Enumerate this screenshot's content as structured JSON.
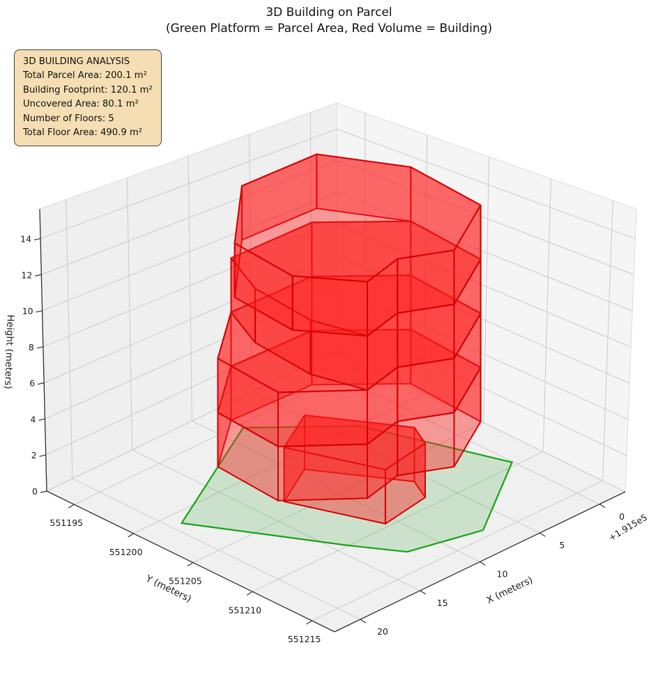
{
  "title": {
    "line1": "3D Building on Parcel",
    "line2": "(Green Platform = Parcel Area, Red Volume = Building)"
  },
  "annotation": {
    "title": "3D BUILDING ANALYSIS",
    "lines": [
      "Total Parcel Area: 200.1 m²",
      "Building Footprint: 120.1 m²",
      "Uncovered Area: 80.1 m²",
      "Number of Floors: 5",
      "Total Floor Area: 490.9 m²"
    ]
  },
  "chart_data": {
    "type": "3d-building-plot",
    "title": "3D Building on Parcel",
    "subtitle": "(Green Platform = Parcel Area, Red Volume = Building)",
    "xlabel": "X (meters)",
    "ylabel": "Y (meters)",
    "zlabel": "Height (meters)",
    "x_offset_text": "+1.915e5",
    "x_ticks": [
      0,
      5,
      10,
      15,
      20
    ],
    "y_ticks": [
      551195,
      551200,
      551205,
      551210,
      551215
    ],
    "z_ticks": [
      0,
      2,
      4,
      6,
      8,
      10,
      12,
      14
    ],
    "x_range": [
      -2.15,
      22.15
    ],
    "y_base": 551195,
    "y_range_local": [
      -2.3,
      21.9
    ],
    "z_range": [
      0,
      15.64
    ],
    "grid": true,
    "parcel": {
      "z": 0,
      "area_m2": 200.1,
      "vertices": [
        [
          8.5,
          551195.8
        ],
        [
          3.5,
          551200.5
        ],
        [
          0.3,
          551209.9
        ],
        [
          7.3,
          551214.5
        ],
        [
          12.3,
          551213.2
        ],
        [
          14.2,
          551210.2
        ],
        [
          19.2,
          551201.4
        ]
      ]
    },
    "building": {
      "footprint_area_m2": 120.1,
      "uncovered_area_m2": 80.1,
      "total_floor_area_m2": 490.9,
      "num_floors": 5,
      "floor_height_m": 3,
      "footprints": {
        "ground": [
          [
            13.1,
            551203.8
          ],
          [
            9.5,
            551201.9
          ],
          [
            6.0,
            551207.5
          ],
          [
            6.9,
            551209.3
          ],
          [
            10.8,
            551209.9
          ]
        ],
        "main": [
          [
            17.5,
            551202.7
          ],
          [
            17.9,
            551208.1
          ],
          [
            14.0,
            551211.6
          ],
          [
            10.8,
            551210.9
          ],
          [
            7.7,
            551212.5
          ],
          [
            2.75,
            551209.75
          ],
          [
            2.4,
            551203.6
          ],
          [
            6.6,
            551199.6
          ],
          [
            13.0,
            551199.3
          ]
        ],
        "upper": [
          [
            14.6,
            551202.9
          ],
          [
            15.0,
            551207.9
          ],
          [
            14.0,
            551211.6
          ],
          [
            10.8,
            551210.9
          ],
          [
            7.7,
            551212.5
          ],
          [
            2.75,
            551209.75
          ],
          [
            2.4,
            551203.6
          ],
          [
            6.6,
            551199.6
          ],
          [
            13.0,
            551199.3
          ]
        ],
        "top": [
          [
            16.2,
            551202.8
          ],
          [
            16.6,
            551208.0
          ],
          [
            14.0,
            551211.6
          ],
          [
            10.8,
            551210.9
          ],
          [
            7.7,
            551212.5
          ],
          [
            2.75,
            551209.75
          ],
          [
            2.4,
            551203.6
          ],
          [
            5.2,
            551198.6
          ],
          [
            11.0,
            551198.2
          ]
        ]
      },
      "floors": [
        {
          "z0": 0,
          "z1": 3,
          "footprint": "ground"
        },
        {
          "z0": 3,
          "z1": 6,
          "footprint": "main"
        },
        {
          "z0": 6,
          "z1": 9,
          "footprint": "main"
        },
        {
          "z0": 9,
          "z1": 12,
          "footprint": "upper"
        },
        {
          "z0": 12,
          "z1": 15,
          "footprint": "top"
        }
      ]
    },
    "colors": {
      "building_edge": "#d60000",
      "building_fill_rgba": "rgba(255,32,32,0.42)",
      "parcel_edge": "#16a316",
      "parcel_fill_rgba": "rgba(44,160,44,0.18)",
      "annotation_bg": "#f5deb3",
      "annotation_border": "#424242",
      "pane_left": "#efefef",
      "pane_right": "#f5f5f5",
      "pane_floor": "#f0f0f0",
      "pane_edge": "#dcdcdc",
      "grid_line": "#c9c9c9",
      "spine": "#2f2f2f",
      "text": "#1a1a1a"
    }
  }
}
